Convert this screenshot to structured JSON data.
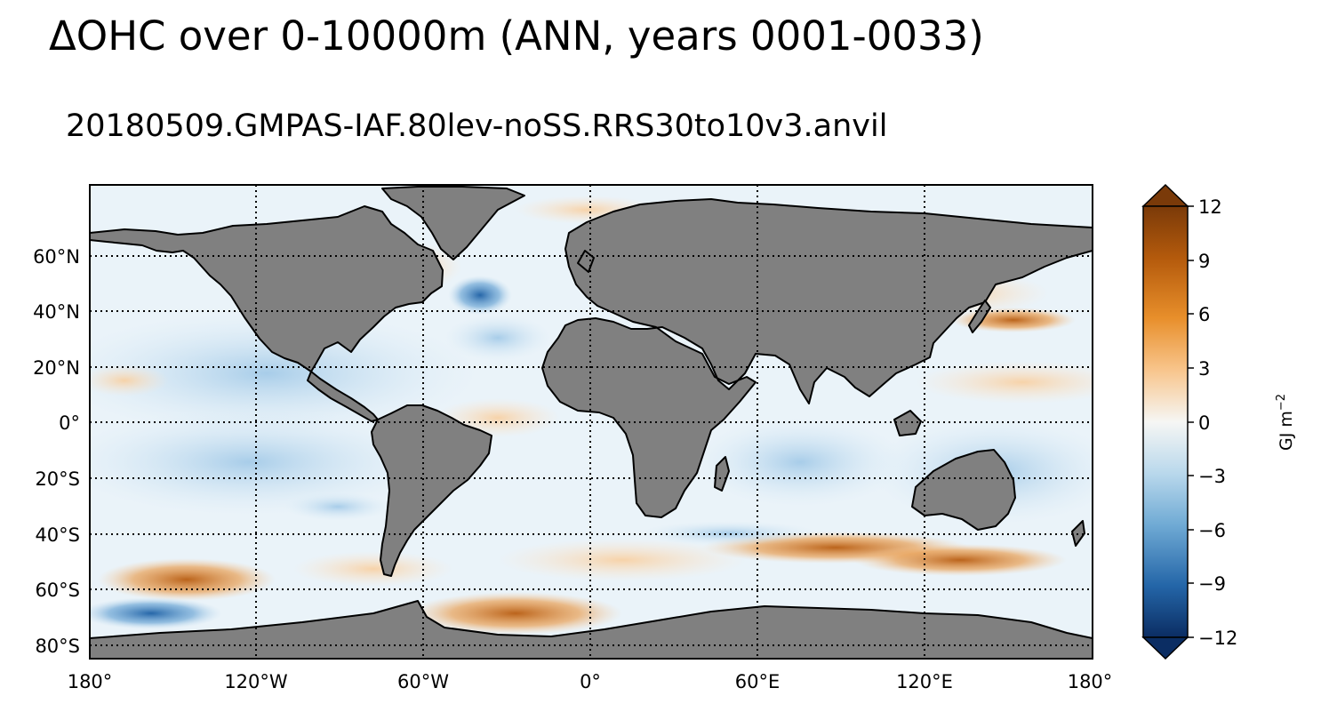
{
  "title": "ΔOHC over 0-10000m (ANN, years 0001-0033)",
  "subtitle": "20180509.GMPAS-IAF.80lev-noSS.RRS30to10v3.anvil",
  "map": {
    "projection": "PlateCarree",
    "extent": {
      "lon": [
        -180,
        180
      ],
      "lat": [
        -85,
        85
      ]
    },
    "land_color": "#808080",
    "gridlines": "dotted",
    "lat_ticks": [
      {
        "value": 60,
        "label": "60°N"
      },
      {
        "value": 40,
        "label": "40°N"
      },
      {
        "value": 20,
        "label": "20°N"
      },
      {
        "value": 0,
        "label": "0°"
      },
      {
        "value": -20,
        "label": "20°S"
      },
      {
        "value": -40,
        "label": "40°S"
      },
      {
        "value": -60,
        "label": "60°S"
      },
      {
        "value": -80,
        "label": "80°S"
      }
    ],
    "lon_ticks": [
      {
        "value": -180,
        "label": "180°"
      },
      {
        "value": -120,
        "label": "120°W"
      },
      {
        "value": -60,
        "label": "60°W"
      },
      {
        "value": 0,
        "label": "0°"
      },
      {
        "value": 60,
        "label": "60°E"
      },
      {
        "value": 120,
        "label": "120°E"
      },
      {
        "value": 180,
        "label": "180°"
      }
    ]
  },
  "colorbar": {
    "label": "GJ m",
    "label_exponent": "−2",
    "range": [
      -12,
      12
    ],
    "extend": "both",
    "ticks": [
      {
        "value": 12,
        "label": "12"
      },
      {
        "value": 9,
        "label": "9"
      },
      {
        "value": 6,
        "label": "6"
      },
      {
        "value": 3,
        "label": "3"
      },
      {
        "value": 0,
        "label": "0"
      },
      {
        "value": -3,
        "label": "−3"
      },
      {
        "value": -6,
        "label": "−6"
      },
      {
        "value": -9,
        "label": "−9"
      },
      {
        "value": -12,
        "label": "−12"
      }
    ],
    "colors": {
      "min": "#0b2d63",
      "mid": "#f6f6f4",
      "max": "#7a3a09"
    }
  }
}
